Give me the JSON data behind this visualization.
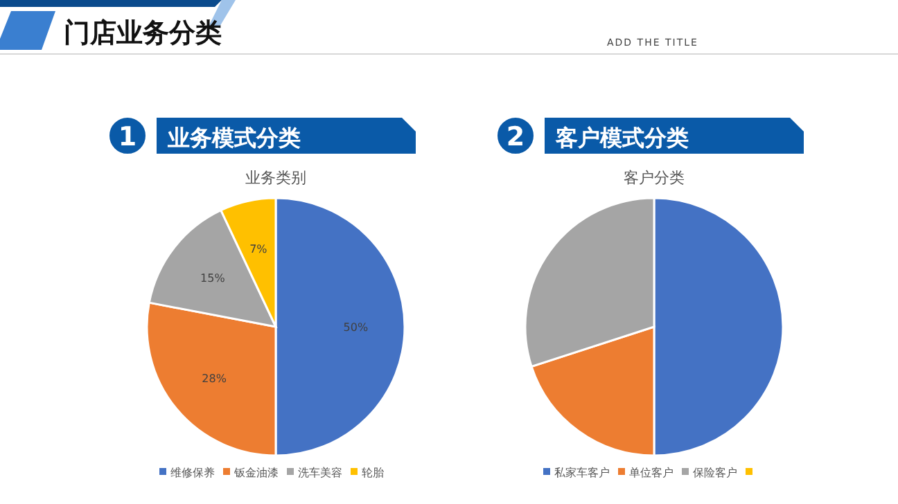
{
  "chart_data": [
    {
      "type": "pie",
      "title": "业务模式分类",
      "subtitle": "业务类别",
      "annotations": [
        "门店业务分类",
        "ADD THE TITLE",
        "1"
      ],
      "categories": [
        "维修保养",
        "钣金油漆",
        "洗车美容",
        "轮胎"
      ],
      "values": [
        50,
        28,
        15,
        7
      ],
      "colors": [
        "#4472c4",
        "#ed7d31",
        "#a5a5a5",
        "#ffc000"
      ],
      "value_labels": [
        "50%",
        "28%",
        "15%",
        "7%"
      ],
      "legend": "bottom"
    },
    {
      "type": "pie",
      "title": "客户模式分类",
      "subtitle": "客户分类",
      "annotations": [
        "2"
      ],
      "categories": [
        "私家车客户",
        "单位客户",
        "保险客户",
        null
      ],
      "values": [
        50,
        20,
        30,
        0
      ],
      "colors": [
        "#4472c4",
        "#ed7d31",
        "#a5a5a5",
        "#ffc000"
      ],
      "legend": "bottom"
    }
  ]
}
